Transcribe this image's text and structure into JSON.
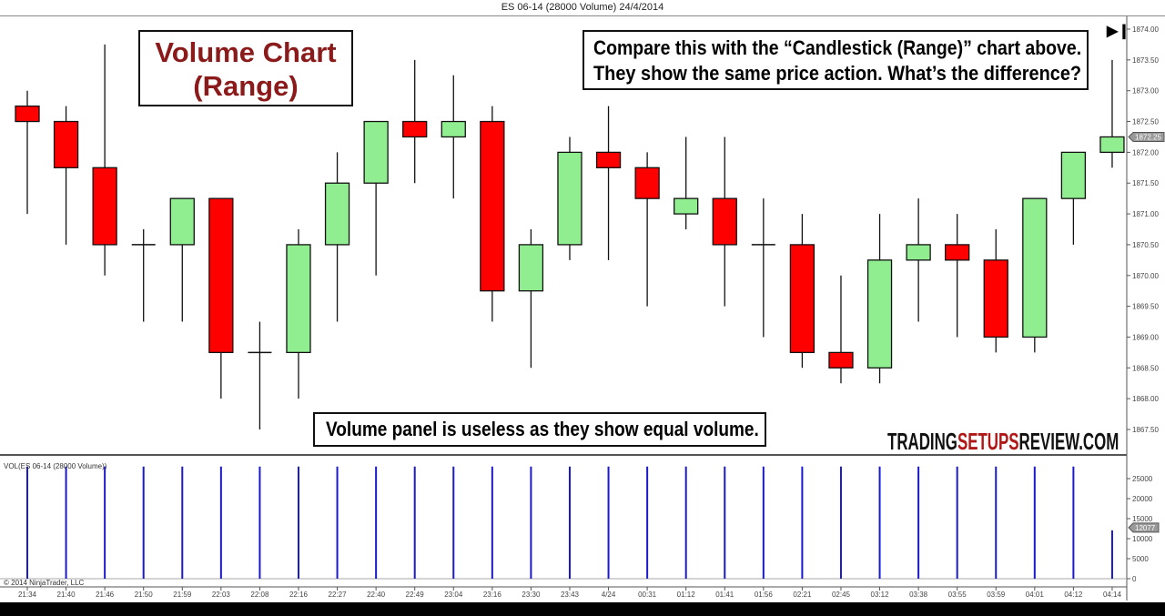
{
  "title": "ES 06-14 (28000 Volume)  24/4/2014",
  "annotations": {
    "box1": [
      "Volume Chart",
      "(Range)"
    ],
    "box2": [
      "Compare this with the “Candlestick (Range)” chart above.",
      "They show the same price action. What’s the difference?"
    ],
    "box3": "Volume panel is useless as they show equal volume.",
    "watermark": {
      "a": "TRADING",
      "b": "SETUPS",
      "c": "REVIEW.COM"
    }
  },
  "volume_label": "VOL(ES 06-14 (28000 Volume))",
  "copyright": "© 2014 NinjaTrader, LLC",
  "colors": {
    "up": "#90ee90",
    "down": "#ff0000",
    "volume": "#1a1acc",
    "watermark_accent": "#b01818"
  },
  "chart_data": [
    {
      "type": "candlestick",
      "title": "ES 06-14 (28000 Volume)  24/4/2014",
      "categories": [
        "21:34",
        "21:40",
        "21:46",
        "21:50",
        "21:59",
        "22:03",
        "22:08",
        "22:16",
        "22:27",
        "22:40",
        "22:49",
        "23:04",
        "23:16",
        "23:30",
        "23:43",
        "4/24",
        "00:31",
        "01:12",
        "01:41",
        "01:56",
        "02:21",
        "02:45",
        "03:12",
        "03:38",
        "03:55",
        "03:59",
        "04:01",
        "04:12",
        "04:14"
      ],
      "ohlc": [
        [
          1872.75,
          1873.0,
          1871.0,
          1872.5
        ],
        [
          1872.5,
          1872.75,
          1870.5,
          1871.75
        ],
        [
          1871.75,
          1873.75,
          1870.0,
          1870.5
        ],
        [
          1870.5,
          1870.75,
          1869.25,
          1870.5
        ],
        [
          1870.5,
          1871.25,
          1869.25,
          1871.25
        ],
        [
          1871.25,
          1871.25,
          1868.0,
          1868.75
        ],
        [
          1868.75,
          1869.25,
          1867.5,
          1868.75
        ],
        [
          1868.75,
          1870.75,
          1868.0,
          1870.5
        ],
        [
          1870.5,
          1872.0,
          1869.25,
          1871.5
        ],
        [
          1871.5,
          1872.5,
          1870.0,
          1872.5
        ],
        [
          1872.5,
          1873.5,
          1871.5,
          1872.25
        ],
        [
          1872.25,
          1873.25,
          1871.25,
          1872.5
        ],
        [
          1872.5,
          1872.75,
          1869.25,
          1869.75
        ],
        [
          1869.75,
          1870.75,
          1868.5,
          1870.5
        ],
        [
          1870.5,
          1872.25,
          1870.25,
          1872.0
        ],
        [
          1872.0,
          1872.75,
          1870.25,
          1871.75
        ],
        [
          1871.75,
          1872.0,
          1869.5,
          1871.25
        ],
        [
          1871.0,
          1872.25,
          1870.75,
          1871.25
        ],
        [
          1871.25,
          1872.25,
          1869.5,
          1870.5
        ],
        [
          1870.5,
          1871.25,
          1869.0,
          1870.5
        ],
        [
          1870.5,
          1871.0,
          1868.5,
          1868.75
        ],
        [
          1868.75,
          1870.0,
          1868.25,
          1868.5
        ],
        [
          1868.5,
          1871.0,
          1868.25,
          1870.25
        ],
        [
          1870.25,
          1871.25,
          1869.25,
          1870.5
        ],
        [
          1870.5,
          1871.0,
          1869.0,
          1870.25
        ],
        [
          1870.25,
          1870.75,
          1868.75,
          1869.0
        ],
        [
          1869.0,
          1871.25,
          1868.75,
          1871.25
        ],
        [
          1871.25,
          1872.0,
          1870.5,
          1872.0
        ],
        [
          1872.0,
          1873.5,
          1871.75,
          1872.25
        ]
      ],
      "ylim": [
        1867.5,
        1874.0
      ],
      "yticks": [
        "1874.00",
        "1873.50",
        "1873.00",
        "1872.50",
        "1872.00",
        "1871.50",
        "1871.00",
        "1870.50",
        "1870.00",
        "1869.50",
        "1869.00",
        "1868.50",
        "1868.00",
        "1867.50"
      ],
      "last_price": "1872.25",
      "grid": false
    },
    {
      "type": "bar",
      "title": "VOL(ES 06-14 (28000 Volume))",
      "values": [
        28000,
        28000,
        28000,
        28000,
        28000,
        28000,
        28000,
        28000,
        28000,
        28000,
        28000,
        28000,
        28000,
        28000,
        28000,
        28000,
        28000,
        28000,
        28000,
        28000,
        28000,
        28000,
        28000,
        28000,
        28000,
        28000,
        28000,
        28000,
        12077
      ],
      "ylim": [
        0,
        30000
      ],
      "yticks": [
        "25000",
        "20000",
        "15000",
        "10000",
        "5000",
        "0"
      ],
      "last_value": "12077",
      "grid": false
    }
  ]
}
